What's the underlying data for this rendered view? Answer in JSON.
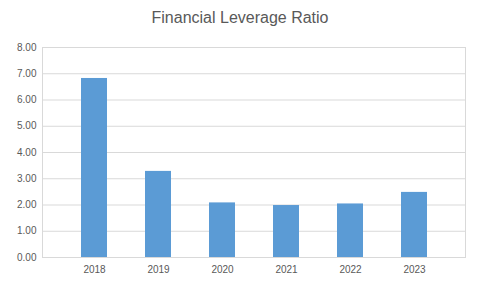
{
  "chart_data": {
    "type": "bar",
    "title": "Financial Leverage Ratio",
    "categories": [
      "2018",
      "2019",
      "2020",
      "2021",
      "2022",
      "2023"
    ],
    "values": [
      6.82,
      3.28,
      2.08,
      1.98,
      2.04,
      2.48
    ],
    "color": "#5b9bd5",
    "ylim": [
      0,
      8
    ],
    "yticks": [
      {
        "value": 0,
        "label": "0.00"
      },
      {
        "value": 1,
        "label": "1.00"
      },
      {
        "value": 2,
        "label": "2.00"
      },
      {
        "value": 3,
        "label": "3.00"
      },
      {
        "value": 4,
        "label": "4.00"
      },
      {
        "value": 5,
        "label": "5.00"
      },
      {
        "value": 6,
        "label": "6.00"
      },
      {
        "value": 7,
        "label": "7.00"
      },
      {
        "value": 8,
        "label": "8.00"
      }
    ],
    "grid": true
  }
}
